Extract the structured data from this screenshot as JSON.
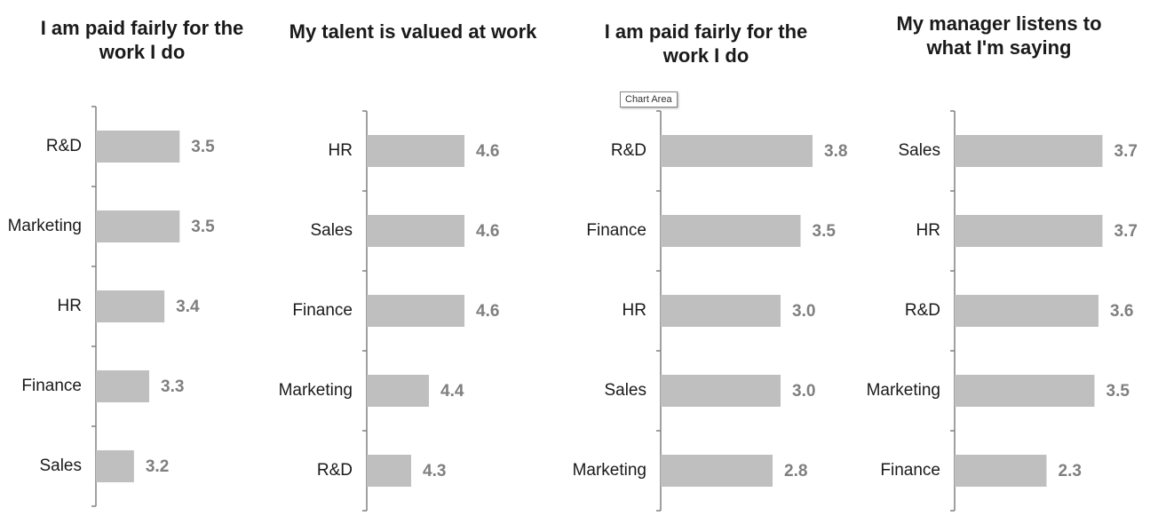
{
  "chart_data": [
    {
      "type": "bar",
      "orientation": "horizontal",
      "title": "I am paid fairly for the work I do",
      "categories": [
        "R&D",
        "Marketing",
        "HR",
        "Finance",
        "Sales"
      ],
      "values": [
        3.5,
        3.5,
        3.4,
        3.3,
        3.2
      ],
      "color": "#bfbfbf",
      "xlim": [
        2.95,
        4
      ]
    },
    {
      "type": "bar",
      "orientation": "horizontal",
      "title": "My talent is valued at work",
      "categories": [
        "HR",
        "Sales",
        "Finance",
        "Marketing",
        "R&D"
      ],
      "values": [
        4.6,
        4.6,
        4.6,
        4.4,
        4.3
      ],
      "color": "#bfbfbf",
      "xlim": [
        4.05,
        4.95
      ]
    },
    {
      "type": "bar",
      "orientation": "horizontal",
      "title": "I am paid fairly for the work I do",
      "categories": [
        "R&D",
        "Finance",
        "HR",
        "Sales",
        "Marketing"
      ],
      "values": [
        3.8,
        3.5,
        3.0,
        3.0,
        2.8
      ],
      "value_labels": [
        "3.8",
        "3.5",
        "3.0",
        "3.0",
        "2.8"
      ],
      "color": "#bfbfbf",
      "xlim": [
        0,
        4
      ]
    },
    {
      "type": "bar",
      "orientation": "horizontal",
      "title": "My manager listens to what I'm saying",
      "categories": [
        "Sales",
        "HR",
        "R&D",
        "Marketing",
        "Finance"
      ],
      "values": [
        3.7,
        3.7,
        3.6,
        3.5,
        2.3
      ],
      "color": "#bfbfbf",
      "xlim": [
        0,
        4
      ]
    }
  ],
  "tooltip": "Chart Area"
}
